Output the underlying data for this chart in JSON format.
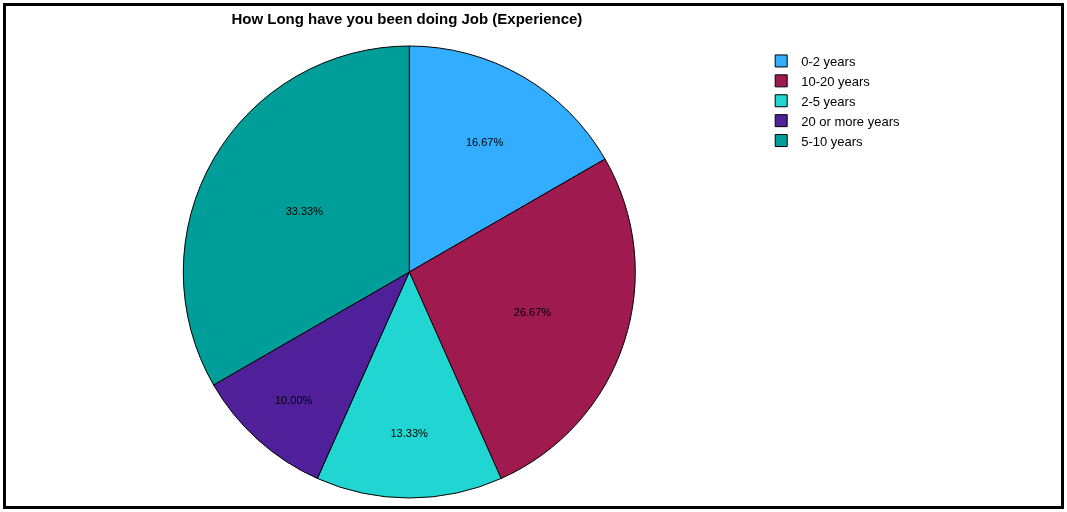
{
  "chart_data": {
    "type": "pie",
    "title": "How Long have you been doing Job (Experience)",
    "categories": [
      "0-2 years",
      "10-20 years",
      "2-5 years",
      "20 or more years",
      "5-10 years"
    ],
    "values": [
      16.67,
      26.67,
      13.33,
      10.0,
      33.33
    ],
    "value_labels": [
      "16.67%",
      "26.67%",
      "13.33%",
      "10.00%",
      "33.33%"
    ],
    "colors": [
      "#33adff",
      "#9e1a4f",
      "#21d6d2",
      "#4f2099",
      "#009e99"
    ],
    "legend": "top right"
  }
}
